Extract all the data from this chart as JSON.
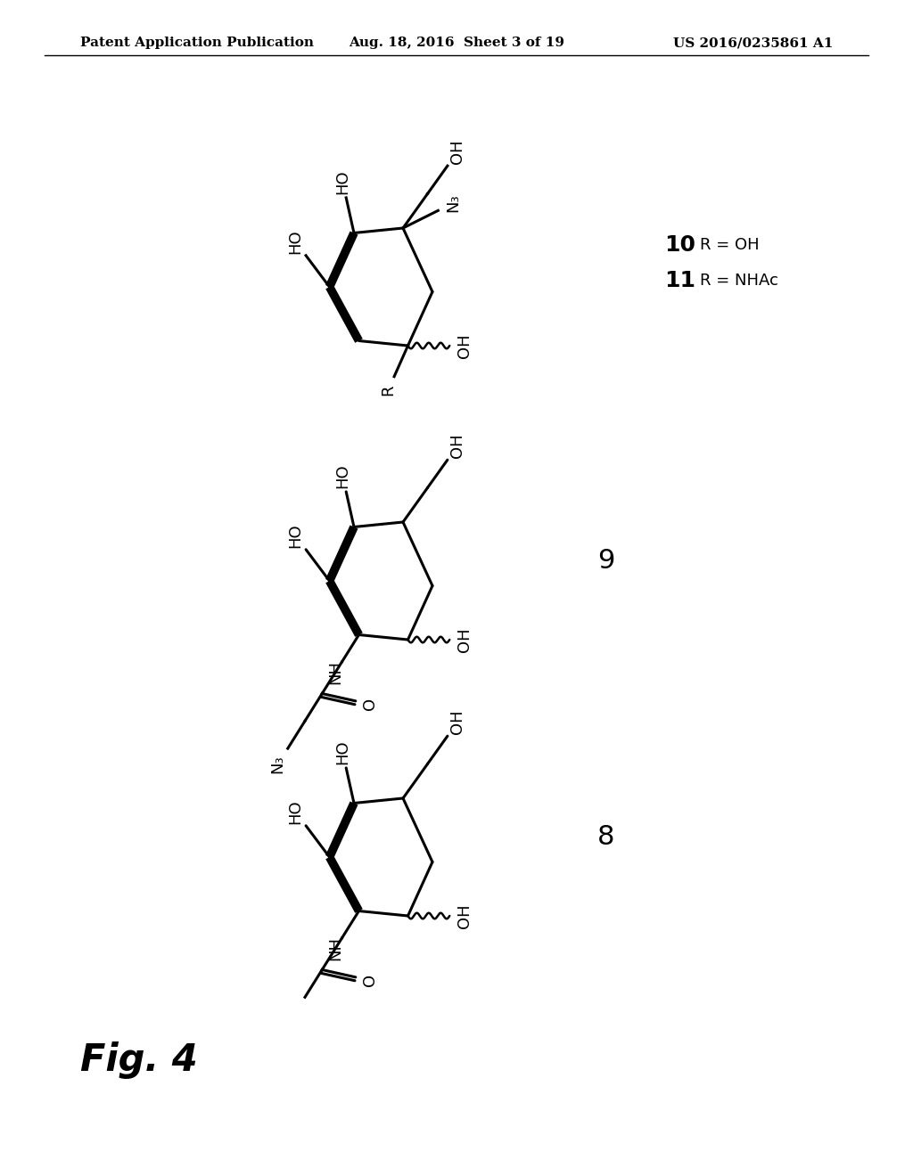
{
  "background_color": "#ffffff",
  "header_left": "Patent Application Publication",
  "header_center": "Aug. 18, 2016  Sheet 3 of 19",
  "header_right": "US 2016/0235861 A1",
  "header_fontsize": 11,
  "fig_label": "Fig. 4",
  "fig_label_fontsize": 30
}
